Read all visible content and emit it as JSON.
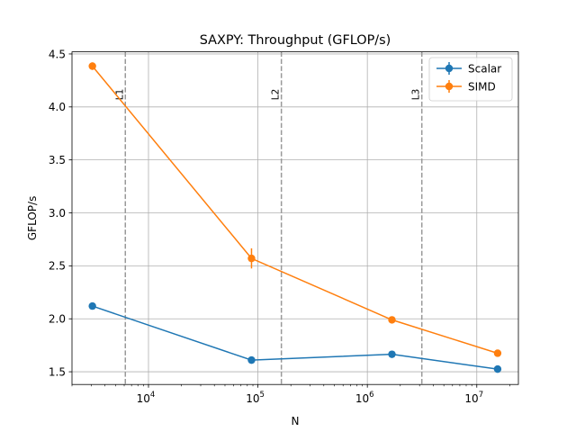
{
  "chart_data": {
    "type": "line",
    "title": "SAXPY: Throughput (GFLOP/s)",
    "xlabel": "N",
    "ylabel": "GFLOP/s",
    "xscale": "log",
    "xlim": [
      2000,
      24000000
    ],
    "ylim": [
      1.38,
      4.52
    ],
    "grid": true,
    "legend_position": "top-right",
    "x_ticks": [
      {
        "value": 10000,
        "base": "10",
        "exp": "4"
      },
      {
        "value": 100000,
        "base": "10",
        "exp": "5"
      },
      {
        "value": 1000000,
        "base": "10",
        "exp": "6"
      },
      {
        "value": 10000000,
        "base": "10",
        "exp": "7"
      }
    ],
    "y_ticks": [
      1.5,
      2.0,
      2.5,
      3.0,
      3.5,
      4.0,
      4.5
    ],
    "y_tick_labels": [
      "1.5",
      "2.0",
      "2.5",
      "3.0",
      "3.5",
      "4.0",
      "4.5"
    ],
    "series": [
      {
        "name": "Scalar",
        "color": "#1f77b4",
        "x": [
          3072,
          87381,
          1677722,
          15500000
        ],
        "y": [
          2.12,
          1.61,
          1.665,
          1.525
        ],
        "err": [
          0.015,
          0.03,
          0.015,
          0.01
        ]
      },
      {
        "name": "SIMD",
        "color": "#ff7f0e",
        "x": [
          3072,
          87381,
          1677722,
          15500000
        ],
        "y": [
          4.385,
          2.57,
          1.99,
          1.675
        ],
        "err": [
          0.035,
          0.095,
          0.015,
          0.015
        ]
      }
    ],
    "vlines": [
      {
        "label": "L1",
        "x": 6144
      },
      {
        "label": "L2",
        "x": 163840
      },
      {
        "label": "L3",
        "x": 3145728
      }
    ],
    "vline_color": "#999999"
  }
}
